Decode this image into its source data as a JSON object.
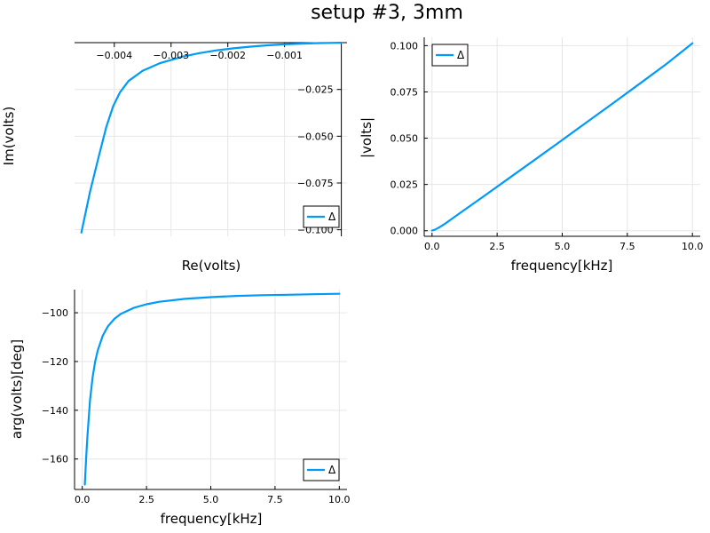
{
  "figure": {
    "title": "setup #3, 3mm"
  },
  "colors": {
    "series": "#009af9",
    "axis": "#000000",
    "grid": "#e6e6e6"
  },
  "chart_data": [
    {
      "id": "nyquist",
      "type": "line",
      "xlabel": "Re(volts)",
      "ylabel": "Im(volts)",
      "xlim": [
        -0.0047,
        0.0001
      ],
      "ylim": [
        -0.1035,
        0.0005
      ],
      "xticks": [
        -0.004,
        -0.003,
        -0.002,
        -0.001
      ],
      "xtick_labels": [
        "−0.004",
        "−0.003",
        "−0.002",
        "−0.001"
      ],
      "yticks": [
        -0.1,
        -0.075,
        -0.05,
        -0.025
      ],
      "ytick_labels": [
        "−0.100",
        "−0.075",
        "−0.050",
        "−0.025"
      ],
      "axes_at_origin": true,
      "grid": true,
      "legend": {
        "position": "bottom-right",
        "entries": [
          "Δ"
        ]
      },
      "series": [
        {
          "name": "Δ",
          "x": [
            -0.00458,
            -0.00443,
            -0.00428,
            -0.00414,
            -0.00402,
            -0.0039,
            -0.00375,
            -0.0035,
            -0.0032,
            -0.0028,
            -0.0025,
            -0.0022,
            -0.0019,
            -0.0016,
            -0.0013,
            -0.001,
            -0.0007,
            -0.0004,
            -0.0002,
            0.0
          ],
          "y": [
            -0.1015,
            -0.08,
            -0.0615,
            -0.045,
            -0.034,
            -0.0265,
            -0.0205,
            -0.015,
            -0.011,
            -0.0075,
            -0.0056,
            -0.0041,
            -0.003,
            -0.0021,
            -0.0014,
            -0.0009,
            -0.0005,
            -0.0002,
            -0.0001,
            0.0
          ]
        }
      ]
    },
    {
      "id": "magnitude",
      "type": "line",
      "xlabel": "frequency[kHz]",
      "ylabel": "|volts|",
      "xlim": [
        -0.3,
        10.3
      ],
      "ylim": [
        -0.003,
        0.1045
      ],
      "xticks": [
        0,
        2.5,
        5,
        7.5,
        10
      ],
      "xtick_labels": [
        "0.0",
        "2.5",
        "5.0",
        "7.5",
        "10.0"
      ],
      "yticks": [
        0,
        0.025,
        0.05,
        0.075,
        0.1
      ],
      "ytick_labels": [
        "0.000",
        "0.025",
        "0.050",
        "0.075",
        "0.100"
      ],
      "grid": true,
      "legend": {
        "position": "top-left",
        "entries": [
          "Δ"
        ]
      },
      "series": [
        {
          "name": "Δ",
          "x": [
            0,
            0.1,
            0.2,
            0.3,
            0.5,
            0.75,
            1.0,
            2.0,
            3.0,
            4.0,
            5.0,
            6.0,
            7.0,
            8.0,
            9.0,
            10.0
          ],
          "y": [
            0.0001,
            0.0005,
            0.0012,
            0.002,
            0.0038,
            0.0063,
            0.0088,
            0.0188,
            0.0288,
            0.0389,
            0.049,
            0.0592,
            0.0694,
            0.0797,
            0.0901,
            0.1013
          ]
        }
      ]
    },
    {
      "id": "phase",
      "type": "line",
      "xlabel": "frequency[kHz]",
      "ylabel": "arg(volts)[deg]",
      "xlim": [
        -0.3,
        10.3
      ],
      "ylim": [
        -172.5,
        -90.5
      ],
      "xticks": [
        0,
        2.5,
        5,
        7.5,
        10
      ],
      "xtick_labels": [
        "0.0",
        "2.5",
        "5.0",
        "7.5",
        "10.0"
      ],
      "yticks": [
        -160,
        -140,
        -120,
        -100
      ],
      "ytick_labels": [
        "−160",
        "−140",
        "−120",
        "−100"
      ],
      "grid": true,
      "legend": {
        "position": "bottom-right",
        "entries": [
          "Δ"
        ]
      },
      "series": [
        {
          "name": "Δ",
          "x": [
            0.1,
            0.15,
            0.2,
            0.3,
            0.4,
            0.5,
            0.6,
            0.8,
            1.0,
            1.25,
            1.5,
            2.0,
            2.5,
            3.0,
            4.0,
            5.0,
            6.0,
            7.0,
            8.0,
            9.0,
            10.0
          ],
          "y": [
            -170.5,
            -160.0,
            -150.7,
            -136.0,
            -126.6,
            -120.1,
            -115.5,
            -109.3,
            -105.5,
            -102.5,
            -100.5,
            -98.0,
            -96.5,
            -95.5,
            -94.3,
            -93.6,
            -93.1,
            -92.8,
            -92.6,
            -92.4,
            -92.2
          ]
        }
      ]
    }
  ]
}
